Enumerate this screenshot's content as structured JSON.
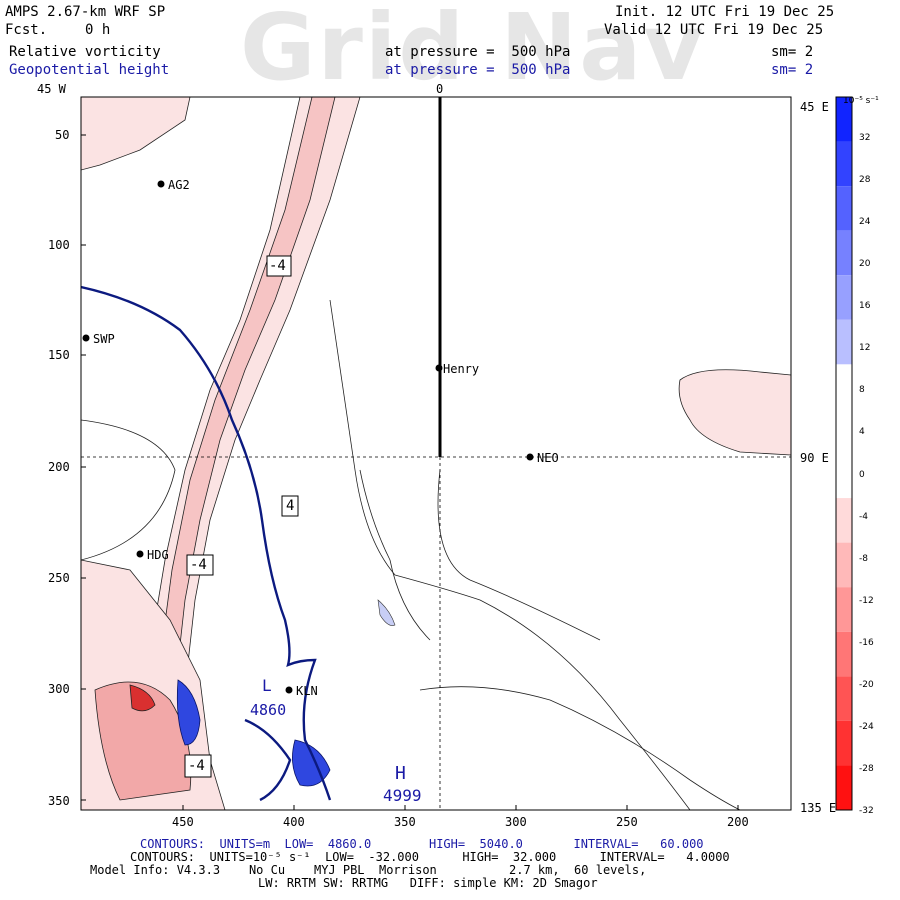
{
  "header": {
    "model": "AMPS 2.67-km WRF SP",
    "forecast_label": "Fcst.",
    "forecast_value": "0 h",
    "init": "Init. 12 UTC Fri 19 Dec 25",
    "valid": "Valid 12 UTC Fri 19 Dec 25",
    "var1_name": "Relative vorticity",
    "var1_level": "at pressure =  500 hPa",
    "var1_smooth": "sm= 2",
    "var2_name": "Geopotential height",
    "var2_level": "at pressure =  500 hPa",
    "var2_smooth": "sm= 2",
    "watermark": "Grid Nav"
  },
  "map": {
    "left_y_ticks": [
      "50",
      "100",
      "150",
      "200",
      "250",
      "300",
      "350"
    ],
    "bottom_x_ticks": [
      "450",
      "400",
      "350",
      "300",
      "250",
      "200"
    ],
    "top_labels": [
      "45 W",
      "0"
    ],
    "right_labels": [
      "45 E",
      "90 E",
      "135 E"
    ],
    "stations": [
      "AG2",
      "SWP",
      "Henry",
      "NEO",
      "HDG",
      "KLN"
    ],
    "contour_labels": [
      "-4",
      "4",
      "-4",
      "-4"
    ],
    "height_labels": [
      "L",
      "4860",
      "H",
      "4999"
    ],
    "colors": {
      "vorticity_neg": "#f8d4d4",
      "vorticity_neg_strong": "#e06060",
      "height_line": "#0c1a80",
      "vorticity_pos": "#1a33d9"
    }
  },
  "colorbar": {
    "unit": "10⁻⁵ s⁻¹",
    "labels": [
      "32",
      "28",
      "24",
      "20",
      "16",
      "12",
      "8",
      "4",
      "0",
      "-4",
      "-8",
      "-12",
      "-16",
      "-20",
      "-24",
      "-28",
      "-32"
    ]
  },
  "footer": {
    "line1": "CONTOURS:  UNITS=m  LOW=  4860.0        HIGH=  5040.0       INTERVAL=   60.000",
    "line2": "CONTOURS:  UNITS=10⁻⁵ s⁻¹  LOW=  -32.000      HIGH=  32.000      INTERVAL=   4.0000",
    "line3": "Model Info: V4.3.3    No Cu    MYJ PBL  Morrison          2.7 km,  60 levels,",
    "line4": "LW: RRTM SW: RRTMG   DIFF: simple KM: 2D Smagor"
  }
}
